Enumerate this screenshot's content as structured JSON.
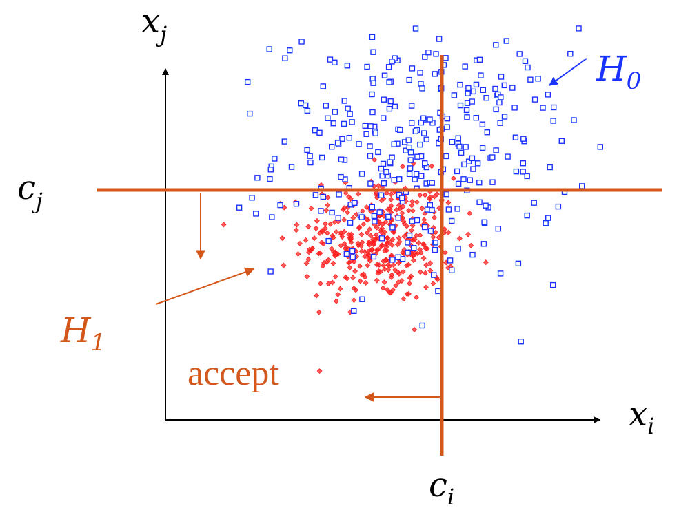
{
  "labels": {
    "x_axis": "x",
    "x_axis_sub": "i",
    "y_axis": "x",
    "y_axis_sub": "j",
    "cut_x": "c",
    "cut_x_sub": "i",
    "cut_y": "c",
    "cut_y_sub": "j",
    "h0": "H",
    "h0_sub": "0",
    "h1": "H",
    "h1_sub": "1",
    "accept": "accept"
  },
  "colors": {
    "h0": "#1a33ff",
    "h1": "#ff2020",
    "cut": "#d4581c",
    "axis": "#000000"
  },
  "chart_data": {
    "type": "scatter",
    "title": "",
    "xlabel": "x_i",
    "ylabel": "x_j",
    "xlim": [
      0,
      1
    ],
    "ylim": [
      0,
      1
    ],
    "grid": false,
    "cuts": {
      "c_i": 0.63,
      "c_j": 0.64
    },
    "series": [
      {
        "name": "H0",
        "marker": "square",
        "center": [
          0.6,
          0.68
        ],
        "spread": [
          0.17,
          0.16
        ],
        "count": 330
      },
      {
        "name": "H1",
        "marker": "diamond",
        "center": [
          0.5,
          0.46
        ],
        "spread": [
          0.09,
          0.08
        ],
        "count": 400
      }
    ]
  }
}
